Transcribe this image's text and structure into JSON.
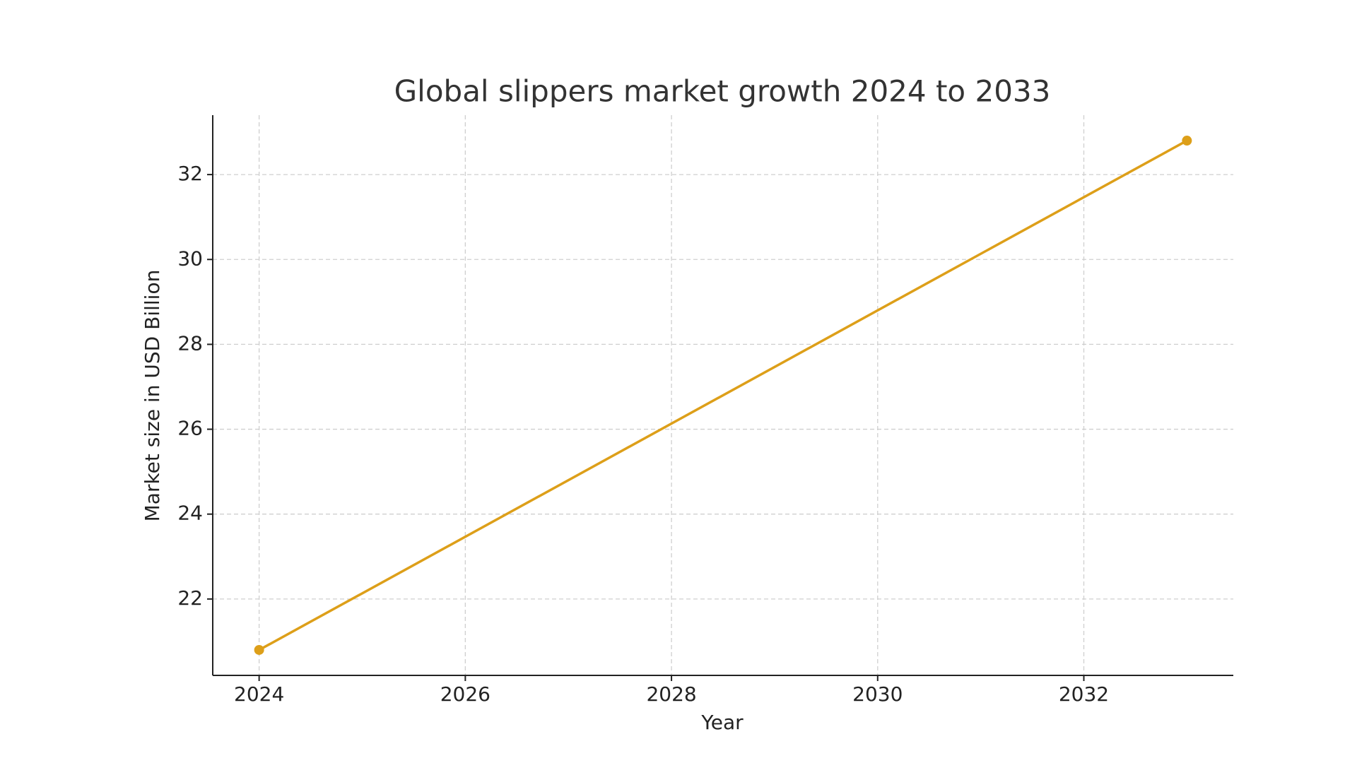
{
  "chart_data": {
    "type": "line",
    "title": "Global slippers market growth 2024 to 2033",
    "x_label": "Year",
    "y_label": "Market size in USD Billion",
    "x": [
      2024,
      2033
    ],
    "values": [
      20.8,
      32.8
    ],
    "color": "#dd9f19",
    "xlim": [
      2023.55,
      2033.45
    ],
    "xticks": [
      2024,
      2026,
      2028,
      2030,
      2032
    ],
    "ylim": [
      20.2,
      33.4
    ],
    "yticks": [
      22,
      24,
      26,
      28,
      30,
      32
    ],
    "grid": true
  }
}
